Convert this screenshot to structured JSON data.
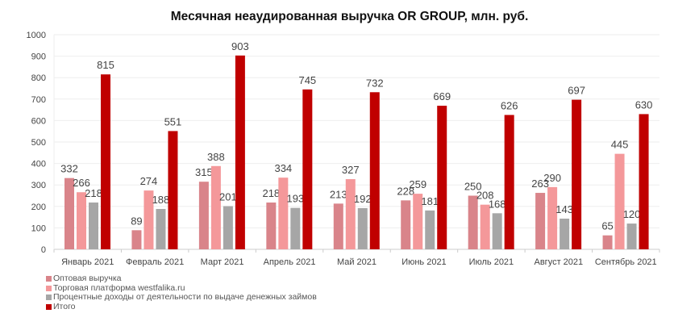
{
  "chart_data": {
    "type": "bar",
    "title": "Месячная неаудированная выручка OR GROUP, млн. руб.",
    "categories": [
      "Январь 2021",
      "Февраль 2021",
      "Март 2021",
      "Апрель 2021",
      "Май 2021",
      "Июнь 2021",
      "Июль 2021",
      "Август 2021",
      "Сентябрь 2021"
    ],
    "ylim": [
      0,
      1000
    ],
    "yticks": [
      0,
      100,
      200,
      300,
      400,
      500,
      600,
      700,
      800,
      900,
      1000
    ],
    "grid": true,
    "legend_position": "bottom-left",
    "series": [
      {
        "name": "Оптовая выручка",
        "color": "#d9848a",
        "values": [
          332,
          89,
          315,
          218,
          213,
          228,
          250,
          263,
          65
        ]
      },
      {
        "name": "Торговая платформа westfalika.ru",
        "color": "#f4989a",
        "values": [
          266,
          274,
          388,
          334,
          327,
          259,
          208,
          290,
          445
        ]
      },
      {
        "name": "Процентные доходы от деятельности по выдаче денежных займов",
        "color": "#a6a6a6",
        "values": [
          218,
          188,
          201,
          193,
          192,
          181,
          168,
          143,
          120
        ]
      },
      {
        "name": "Итого",
        "color": "#c00000",
        "values": [
          815,
          551,
          903,
          745,
          732,
          669,
          626,
          697,
          630
        ]
      }
    ]
  }
}
